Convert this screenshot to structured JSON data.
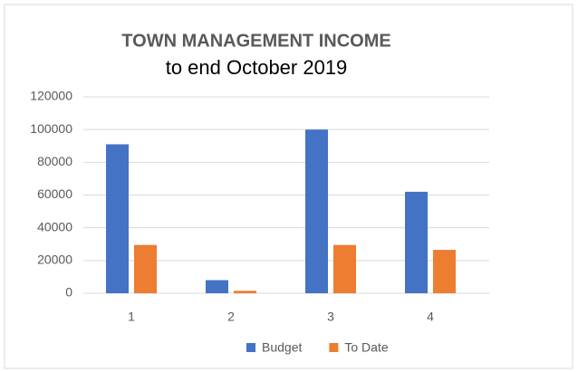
{
  "chart_data": {
    "type": "bar",
    "title": "TOWN MANAGEMENT INCOME",
    "subtitle": "to end October 2019",
    "categories": [
      "1",
      "2",
      "3",
      "4"
    ],
    "series": [
      {
        "name": "Budget",
        "color": "#4472c4",
        "values": [
          91000,
          8000,
          100000,
          62000
        ]
      },
      {
        "name": "To Date",
        "color": "#ed7d31",
        "values": [
          29500,
          1500,
          29500,
          26500
        ]
      }
    ],
    "ylim": [
      0,
      120000
    ],
    "yticks": [
      0,
      20000,
      40000,
      60000,
      80000,
      100000,
      120000
    ],
    "grid": true,
    "legend": "bottom"
  }
}
